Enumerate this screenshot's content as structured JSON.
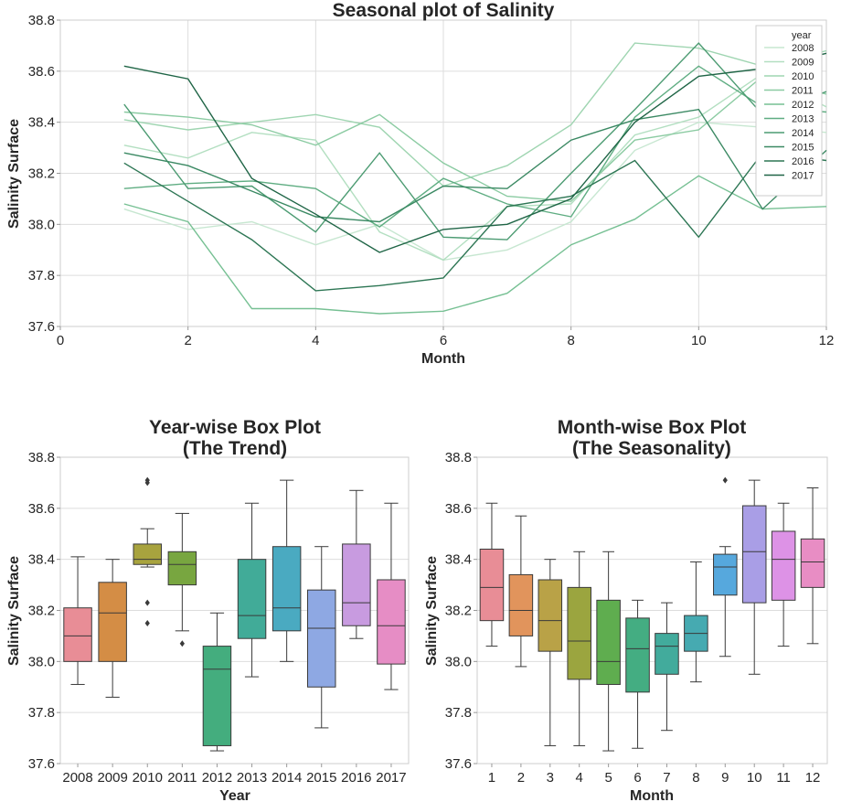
{
  "chart_data": [
    {
      "type": "line",
      "title": "Seasonal plot of Salinity",
      "xlabel": "Month",
      "ylabel": "Salinity Surface",
      "xlim": [
        0,
        12
      ],
      "ylim": [
        37.6,
        38.8
      ],
      "xticks": [
        "0",
        "2",
        "4",
        "6",
        "8",
        "10",
        "12"
      ],
      "yticks": [
        "37.6",
        "37.8",
        "38.0",
        "38.2",
        "38.4",
        "38.6",
        "38.8"
      ],
      "legend_title": "year",
      "legend_position": "top-right",
      "series": [
        {
          "name": "2008",
          "color": "#c7e7d1",
          "values": [
            38.06,
            37.98,
            38.01,
            37.92,
            38.0,
            37.86,
            37.9,
            38.01,
            38.29,
            38.4,
            38.38,
            38.36
          ]
        },
        {
          "name": "2009",
          "color": "#b3dfc1",
          "values": [
            38.31,
            38.26,
            38.36,
            38.33,
            37.97,
            37.86,
            38.07,
            38.08,
            38.35,
            38.42,
            38.59,
            38.46
          ]
        },
        {
          "name": "2010",
          "color": "#9fd5b1",
          "values": [
            38.41,
            38.37,
            38.4,
            38.43,
            38.38,
            38.15,
            38.23,
            38.39,
            38.71,
            38.69,
            38.62,
            38.68
          ]
        },
        {
          "name": "2011",
          "color": "#8bcba2",
          "values": [
            38.44,
            38.42,
            38.39,
            38.31,
            38.43,
            38.24,
            38.11,
            38.09,
            38.33,
            38.37,
            38.58,
            38.51
          ]
        },
        {
          "name": "2012",
          "color": "#76c093",
          "values": [
            38.08,
            38.01,
            37.67,
            37.67,
            37.65,
            37.66,
            37.73,
            37.92,
            38.02,
            38.19,
            38.06,
            38.07
          ]
        },
        {
          "name": "2013",
          "color": "#5fad82",
          "values": [
            38.14,
            38.16,
            38.17,
            38.14,
            37.99,
            38.18,
            38.08,
            38.03,
            38.42,
            38.62,
            38.46,
            38.44
          ]
        },
        {
          "name": "2014",
          "color": "#4c9b72",
          "values": [
            38.47,
            38.14,
            38.15,
            37.97,
            38.28,
            37.95,
            37.94,
            38.2,
            38.45,
            38.71,
            38.43,
            38.52
          ]
        },
        {
          "name": "2015",
          "color": "#3b8963",
          "values": [
            38.28,
            38.23,
            38.13,
            38.03,
            38.01,
            38.15,
            38.14,
            38.33,
            38.41,
            38.45,
            38.06,
            38.29
          ]
        },
        {
          "name": "2016",
          "color": "#2d7654",
          "values": [
            38.24,
            38.09,
            37.94,
            37.74,
            37.76,
            37.79,
            38.07,
            38.11,
            38.25,
            37.95,
            38.28,
            38.25
          ]
        },
        {
          "name": "2017",
          "color": "#1f6546",
          "values": [
            38.62,
            38.57,
            38.18,
            38.04,
            37.89,
            37.98,
            38.0,
            38.1,
            38.4,
            38.58,
            38.61,
            38.67
          ]
        }
      ]
    },
    {
      "type": "box",
      "title": "Year-wise Box Plot",
      "subtitle": "(The Trend)",
      "xlabel": "Year",
      "ylabel": "Salinity Surface",
      "ylim": [
        37.6,
        38.8
      ],
      "yticks": [
        "37.6",
        "37.8",
        "38.0",
        "38.2",
        "38.4",
        "38.6",
        "38.8"
      ],
      "categories": [
        "2008",
        "2009",
        "2010",
        "2011",
        "2012",
        "2013",
        "2014",
        "2015",
        "2016",
        "2017"
      ],
      "colors": [
        "#e88d96",
        "#d48d45",
        "#a8a33e",
        "#78a640",
        "#44ad7e",
        "#41ab98",
        "#4aaac1",
        "#8ea8e3",
        "#c89be0",
        "#e68dc5"
      ],
      "boxes": [
        {
          "min": 37.91,
          "q1": 38.0,
          "median": 38.1,
          "q3": 38.21,
          "max": 38.41,
          "outliers": []
        },
        {
          "min": 37.86,
          "q1": 38.0,
          "median": 38.19,
          "q3": 38.31,
          "max": 38.4,
          "outliers": []
        },
        {
          "min": 38.37,
          "q1": 38.38,
          "median": 38.4,
          "q3": 38.46,
          "max": 38.52,
          "outliers": [
            38.71,
            38.7,
            38.23,
            38.15
          ]
        },
        {
          "min": 38.12,
          "q1": 38.3,
          "median": 38.38,
          "q3": 38.43,
          "max": 38.58,
          "outliers": [
            38.07
          ]
        },
        {
          "min": 37.65,
          "q1": 37.67,
          "median": 37.97,
          "q3": 38.06,
          "max": 38.19,
          "outliers": []
        },
        {
          "min": 37.94,
          "q1": 38.09,
          "median": 38.18,
          "q3": 38.4,
          "max": 38.62,
          "outliers": []
        },
        {
          "min": 38.0,
          "q1": 38.12,
          "median": 38.21,
          "q3": 38.45,
          "max": 38.71,
          "outliers": []
        },
        {
          "min": 37.74,
          "q1": 37.9,
          "median": 38.13,
          "q3": 38.28,
          "max": 38.45,
          "outliers": []
        },
        {
          "min": 38.09,
          "q1": 38.14,
          "median": 38.23,
          "q3": 38.46,
          "max": 38.67,
          "outliers": []
        },
        {
          "min": 37.89,
          "q1": 37.99,
          "median": 38.14,
          "q3": 38.32,
          "max": 38.62,
          "outliers": []
        }
      ]
    },
    {
      "type": "box",
      "title": "Month-wise Box Plot",
      "subtitle": "(The Seasonality)",
      "xlabel": "Month",
      "ylabel": "Salinity Surface",
      "ylim": [
        37.6,
        38.8
      ],
      "yticks": [
        "37.6",
        "37.8",
        "38.0",
        "38.2",
        "38.4",
        "38.6",
        "38.8"
      ],
      "categories": [
        "1",
        "2",
        "3",
        "4",
        "5",
        "6",
        "7",
        "8",
        "9",
        "10",
        "11",
        "12"
      ],
      "colors": [
        "#e88d96",
        "#e1945c",
        "#b9a247",
        "#9ba53f",
        "#5fad4f",
        "#44ad82",
        "#42ab9c",
        "#46aab1",
        "#56a8dd",
        "#a99ee6",
        "#dd92e6",
        "#e88dc4"
      ],
      "boxes": [
        {
          "min": 38.06,
          "q1": 38.16,
          "median": 38.29,
          "q3": 38.44,
          "max": 38.62,
          "outliers": []
        },
        {
          "min": 37.98,
          "q1": 38.1,
          "median": 38.2,
          "q3": 38.34,
          "max": 38.57,
          "outliers": []
        },
        {
          "min": 37.67,
          "q1": 38.04,
          "median": 38.16,
          "q3": 38.32,
          "max": 38.4,
          "outliers": []
        },
        {
          "min": 37.67,
          "q1": 37.93,
          "median": 38.08,
          "q3": 38.29,
          "max": 38.43,
          "outliers": []
        },
        {
          "min": 37.65,
          "q1": 37.91,
          "median": 38.0,
          "q3": 38.24,
          "max": 38.43,
          "outliers": []
        },
        {
          "min": 37.66,
          "q1": 37.88,
          "median": 38.05,
          "q3": 38.17,
          "max": 38.24,
          "outliers": []
        },
        {
          "min": 37.73,
          "q1": 37.95,
          "median": 38.06,
          "q3": 38.11,
          "max": 38.23,
          "outliers": []
        },
        {
          "min": 37.92,
          "q1": 38.04,
          "median": 38.11,
          "q3": 38.18,
          "max": 38.39,
          "outliers": []
        },
        {
          "min": 38.02,
          "q1": 38.26,
          "median": 38.37,
          "q3": 38.42,
          "max": 38.45,
          "outliers": [
            38.71
          ]
        },
        {
          "min": 37.95,
          "q1": 38.23,
          "median": 38.43,
          "q3": 38.61,
          "max": 38.71,
          "outliers": []
        },
        {
          "min": 38.06,
          "q1": 38.24,
          "median": 38.4,
          "q3": 38.51,
          "max": 38.62,
          "outliers": []
        },
        {
          "min": 38.07,
          "q1": 38.29,
          "median": 38.39,
          "q3": 38.48,
          "max": 38.68,
          "outliers": []
        }
      ]
    }
  ]
}
